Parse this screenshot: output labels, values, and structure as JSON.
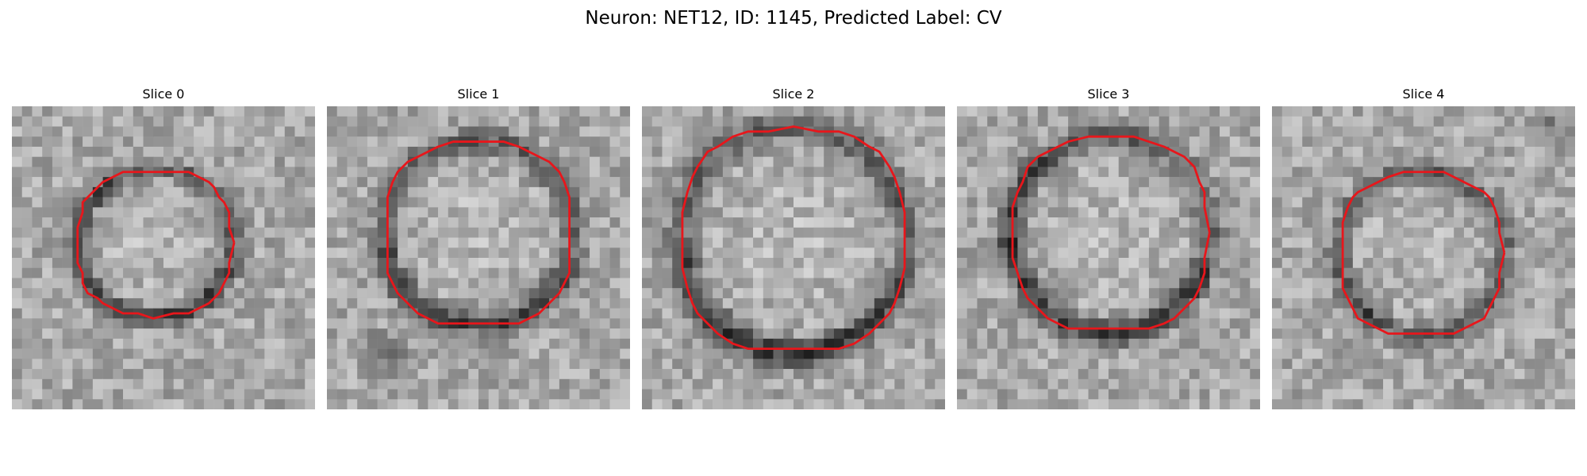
{
  "figure": {
    "title": "Neuron: NET12, ID: 1145, Predicted Label: CV"
  },
  "colors": {
    "contour": "#e8161b",
    "background": "#ffffff",
    "cmap": "grayscale"
  },
  "panels": [
    {
      "title": "Slice 0"
    },
    {
      "title": "Slice 1"
    },
    {
      "title": "Slice 2"
    },
    {
      "title": "Slice 3"
    },
    {
      "title": "Slice 4"
    }
  ]
}
